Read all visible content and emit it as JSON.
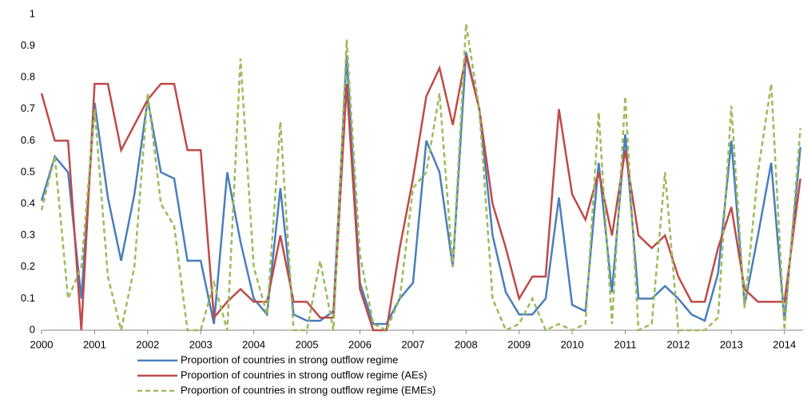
{
  "chart_data": {
    "type": "line",
    "x": [
      2000,
      2000.25,
      2000.5,
      2000.75,
      2001,
      2001.25,
      2001.5,
      2001.75,
      2002,
      2002.25,
      2002.5,
      2002.75,
      2003,
      2003.25,
      2003.5,
      2003.75,
      2004,
      2004.25,
      2004.5,
      2004.75,
      2005,
      2005.25,
      2005.5,
      2005.75,
      2006,
      2006.25,
      2006.5,
      2006.75,
      2007,
      2007.25,
      2007.5,
      2007.75,
      2008,
      2008.25,
      2008.5,
      2008.75,
      2009,
      2009.25,
      2009.5,
      2009.75,
      2010,
      2010.25,
      2010.5,
      2010.75,
      2011,
      2011.25,
      2011.5,
      2011.75,
      2012,
      2012.25,
      2012.5,
      2012.75,
      2013,
      2013.25,
      2013.5,
      2013.75,
      2014,
      2014.3
    ],
    "series": [
      {
        "name": "Proportion of countries in strong outflow regime",
        "color": "#4a7ebb",
        "dash": false,
        "values": [
          0.41,
          0.55,
          0.5,
          0.1,
          0.72,
          0.42,
          0.22,
          0.43,
          0.73,
          0.5,
          0.48,
          0.22,
          0.22,
          0.02,
          0.5,
          0.28,
          0.1,
          0.05,
          0.45,
          0.05,
          0.03,
          0.03,
          0.06,
          0.87,
          0.15,
          0.02,
          0.02,
          0.1,
          0.15,
          0.6,
          0.5,
          0.2,
          0.88,
          0.7,
          0.3,
          0.12,
          0.05,
          0.05,
          0.1,
          0.42,
          0.08,
          0.06,
          0.53,
          0.12,
          0.62,
          0.1,
          0.1,
          0.14,
          0.1,
          0.05,
          0.03,
          0.18,
          0.6,
          0.08,
          0.3,
          0.53,
          0.03,
          0.58
        ]
      },
      {
        "name": "Proportion of countries in strong outflow regime (AEs)",
        "color": "#be4b48",
        "dash": false,
        "values": [
          0.75,
          0.6,
          0.6,
          0,
          0.78,
          0.78,
          0.57,
          0.65,
          0.73,
          0.78,
          0.78,
          0.57,
          0.57,
          0.04,
          0.09,
          0.13,
          0.09,
          0.09,
          0.3,
          0.09,
          0.09,
          0.04,
          0.04,
          0.78,
          0.13,
          0,
          0,
          0.26,
          0.48,
          0.74,
          0.83,
          0.65,
          0.87,
          0.7,
          0.4,
          0.26,
          0.1,
          0.17,
          0.17,
          0.7,
          0.43,
          0.35,
          0.5,
          0.3,
          0.57,
          0.3,
          0.26,
          0.3,
          0.17,
          0.09,
          0.09,
          0.26,
          0.39,
          0.13,
          0.09,
          0.09,
          0.09,
          0.48
        ]
      },
      {
        "name": "Proportion of countries in strong outflow regime (EMEs)",
        "color": "#9bbb59",
        "dash": true,
        "values": [
          0.38,
          0.55,
          0.1,
          0.2,
          0.7,
          0.17,
          0,
          0.2,
          0.75,
          0.4,
          0.33,
          0,
          0,
          0.15,
          0,
          0.86,
          0.2,
          0.05,
          0.66,
          0,
          0,
          0.22,
          0,
          0.92,
          0.24,
          0.02,
          0,
          0.1,
          0.45,
          0.5,
          0.75,
          0.2,
          0.97,
          0.7,
          0.1,
          0,
          0.02,
          0.1,
          0,
          0.02,
          0,
          0.02,
          0.69,
          0.02,
          0.74,
          0,
          0.02,
          0.5,
          0,
          0,
          0,
          0.04,
          0.71,
          0.07,
          0.5,
          0.78,
          0,
          0.64
        ]
      }
    ],
    "xlim": [
      2000,
      2014.35
    ],
    "xticks": [
      2000,
      2001,
      2002,
      2003,
      2004,
      2005,
      2006,
      2007,
      2008,
      2009,
      2010,
      2011,
      2012,
      2013,
      2014
    ],
    "ylim": [
      0,
      1
    ],
    "yticks": [
      0,
      0.1,
      0.2,
      0.3,
      0.4,
      0.5,
      0.6,
      0.7,
      0.8,
      0.9,
      1
    ],
    "grid": false,
    "legend": "bottom"
  }
}
